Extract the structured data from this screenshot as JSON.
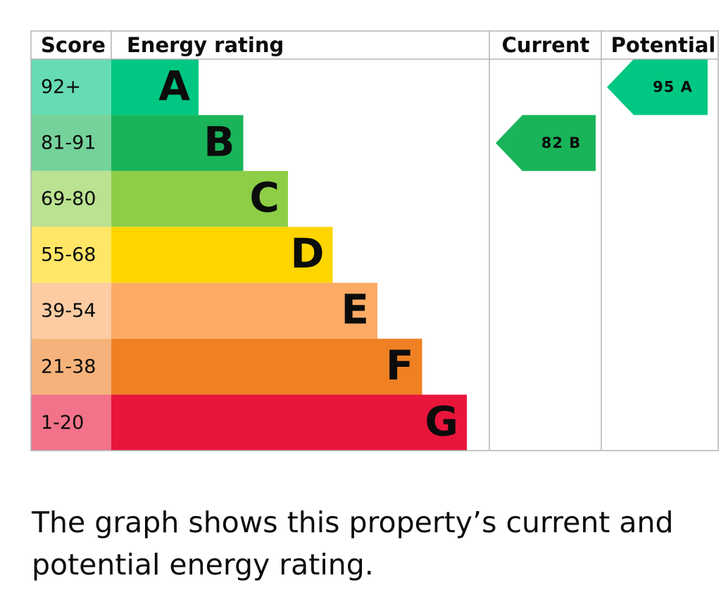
{
  "headers": {
    "score": "Score",
    "rating": "Energy rating",
    "current": "Current",
    "potential": "Potential"
  },
  "bands": [
    {
      "score": "92+",
      "letter": "A",
      "color": "#00c781",
      "tint": "#66dcb3"
    },
    {
      "score": "81-91",
      "letter": "B",
      "color": "#19b459",
      "tint": "#75d29b"
    },
    {
      "score": "69-80",
      "letter": "C",
      "color": "#8dce46",
      "tint": "#bbe290"
    },
    {
      "score": "55-68",
      "letter": "D",
      "color": "#ffd500",
      "tint": "#ffe666"
    },
    {
      "score": "39-54",
      "letter": "E",
      "color": "#fcaa65",
      "tint": "#fdcca3"
    },
    {
      "score": "21-38",
      "letter": "F",
      "color": "#ef8023",
      "tint": "#f5b37b"
    },
    {
      "score": "1-20",
      "letter": "G",
      "color": "#e9153b",
      "tint": "#f27389"
    }
  ],
  "current": {
    "label": "82 B"
  },
  "potential": {
    "label": "95 A"
  },
  "caption": "The graph shows this property’s current and potential energy rating."
}
